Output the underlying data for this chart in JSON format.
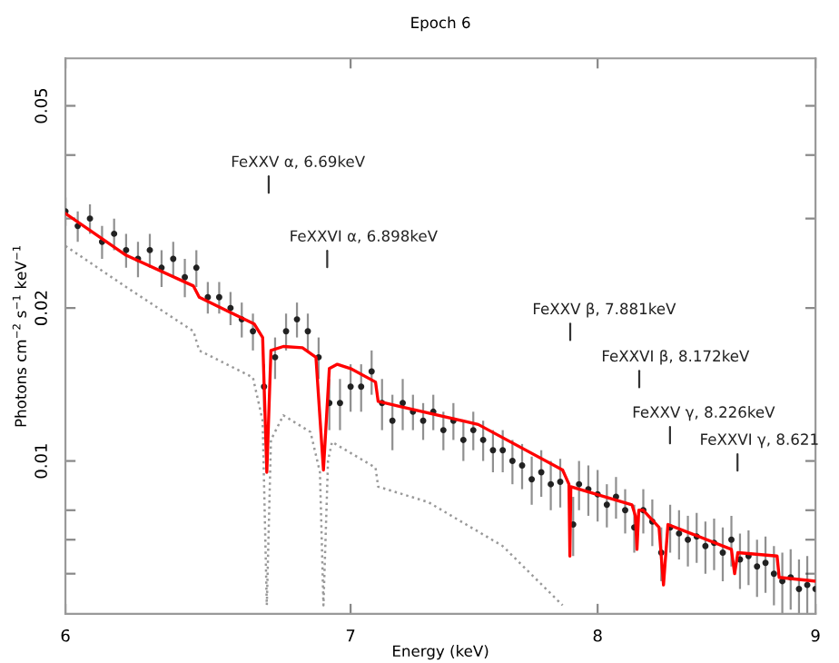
{
  "chart_data": {
    "type": "scatter",
    "title": "Epoch 6",
    "xlabel": "Energy (keV)",
    "ylabel": "Photons cm$^{−2}$ s$^{−1}$ keV$^{−1}$",
    "log": "xy",
    "grid": false,
    "legend": false,
    "xlim": [
      6,
      9
    ],
    "xticks": [
      6,
      7,
      8,
      9
    ],
    "ylim": [
      0.005,
      0.062
    ],
    "yticks": [
      {
        "value": 0.006,
        "label": null
      },
      {
        "value": 0.007,
        "label": null
      },
      {
        "value": 0.008,
        "label": null
      },
      0.01,
      0.02,
      {
        "value": 0.03,
        "label": null
      },
      {
        "value": 0.04,
        "label": null
      },
      0.05
    ],
    "annotations": [
      "FeXXV α, 6.69keV",
      "FeXXVI α, 6.898keV",
      "FeXXV β, 7.881keV",
      "FeXXVI β, 8.172keV",
      "FeXXV γ, 8.226keV",
      "FeXXVI γ, 8.621"
    ],
    "series": [
      {
        "color": "#222222",
        "marker": "circle",
        "x": [
          6.0,
          6.04,
          6.08,
          6.12,
          6.16,
          6.2,
          6.24,
          6.28,
          6.32,
          6.36,
          6.4,
          6.44,
          6.48,
          6.52,
          6.56,
          6.6,
          6.64,
          6.68,
          6.72,
          6.76,
          6.8,
          6.84,
          6.88,
          6.92,
          6.96,
          7.0,
          7.04,
          7.08,
          7.12,
          7.16,
          7.2,
          7.24,
          7.28,
          7.32,
          7.36,
          7.4,
          7.44,
          7.48,
          7.52,
          7.56,
          7.6,
          7.64,
          7.68,
          7.72,
          7.76,
          7.8,
          7.84,
          7.895,
          7.92,
          7.96,
          8.0,
          8.04,
          8.08,
          8.12,
          8.16,
          8.2,
          8.24,
          8.28,
          8.32,
          8.36,
          8.4,
          8.44,
          8.48,
          8.52,
          8.56,
          8.6,
          8.64,
          8.68,
          8.72,
          8.76,
          8.8,
          8.84,
          8.88,
          8.92,
          8.96,
          9.0
        ],
        "values": [
          0.031,
          0.029,
          0.03,
          0.027,
          0.028,
          0.026,
          0.025,
          0.026,
          0.024,
          0.025,
          0.023,
          0.024,
          0.021,
          0.021,
          0.02,
          0.019,
          0.018,
          0.014,
          0.016,
          0.018,
          0.019,
          0.018,
          0.016,
          0.013,
          0.013,
          0.014,
          0.014,
          0.015,
          0.013,
          0.012,
          0.013,
          0.0125,
          0.012,
          0.0125,
          0.0115,
          0.012,
          0.011,
          0.0115,
          0.011,
          0.0105,
          0.0105,
          0.01,
          0.0098,
          0.0092,
          0.0095,
          0.009,
          0.0091,
          0.0075,
          0.009,
          0.0088,
          0.0086,
          0.0082,
          0.0085,
          0.008,
          0.0074,
          0.008,
          0.0076,
          0.0066,
          0.0074,
          0.0072,
          0.007,
          0.0071,
          0.0068,
          0.0069,
          0.0066,
          0.007,
          0.0064,
          0.0065,
          0.0062,
          0.0063,
          0.006,
          0.0058,
          0.0059,
          0.0056,
          0.0057,
          0.0056
        ],
        "errors": [
          0.002,
          0.002,
          0.002,
          0.002,
          0.002,
          0.002,
          0.002,
          0.002,
          0.002,
          0.002,
          0.002,
          0.002,
          0.0015,
          0.0015,
          0.0015,
          0.0015,
          0.0015,
          0.0015,
          0.0015,
          0.0015,
          0.0015,
          0.0015,
          0.0015,
          0.0015,
          0.0015,
          0.0015,
          0.0015,
          0.0015,
          0.0015,
          0.0015,
          0.0015,
          0.001,
          0.001,
          0.001,
          0.001,
          0.001,
          0.001,
          0.001,
          0.001,
          0.001,
          0.001,
          0.001,
          0.001,
          0.001,
          0.001,
          0.001,
          0.001,
          0.001,
          0.001,
          0.001,
          0.001,
          0.0008,
          0.0008,
          0.0008,
          0.0008,
          0.0008,
          0.0008,
          0.0008,
          0.0008,
          0.0008,
          0.0008,
          0.0008,
          0.0008,
          0.0008,
          0.0008,
          0.0008,
          0.0008,
          0.0008,
          0.0008,
          0.0008,
          0.0008,
          0.0008,
          0.0008,
          0.0008,
          0.0008,
          0.0008
        ]
      },
      {
        "type": "line",
        "color": "#ff0000",
        "line_style": "solid",
        "x": [
          6.0,
          6.2,
          6.43,
          6.45,
          6.645,
          6.675,
          6.69,
          6.705,
          6.75,
          6.82,
          6.87,
          6.898,
          6.92,
          6.95,
          7.0,
          7.095,
          7.105,
          7.19,
          7.5,
          7.85,
          7.877,
          7.881,
          7.885,
          8.15,
          8.165,
          8.172,
          8.18,
          8.2,
          8.27,
          8.29,
          8.31,
          8.6,
          8.615,
          8.63,
          8.815,
          8.825,
          9.0
        ],
        "values": [
          0.0307,
          0.0254,
          0.0221,
          0.021,
          0.0186,
          0.0175,
          0.0095,
          0.0165,
          0.0168,
          0.0167,
          0.016,
          0.0096,
          0.0152,
          0.0155,
          0.0152,
          0.0143,
          0.0131,
          0.0128,
          0.0118,
          0.0096,
          0.009,
          0.0065,
          0.0089,
          0.0082,
          0.0078,
          0.0067,
          0.008,
          0.008,
          0.0074,
          0.0057,
          0.0075,
          0.0067,
          0.006,
          0.0066,
          0.0065,
          0.0059,
          0.0058
        ]
      },
      {
        "type": "line",
        "color": "#999999",
        "line_style": "dotted",
        "x": [
          6.0,
          6.2,
          6.43,
          6.45,
          6.64,
          6.675,
          6.69,
          6.705,
          6.75,
          6.85,
          6.885,
          6.898,
          6.915,
          6.93,
          7.095,
          7.105,
          7.3,
          7.6,
          7.85
        ],
        "values": [
          0.0265,
          0.022,
          0.018,
          0.0165,
          0.0146,
          0.012,
          0.0052,
          0.011,
          0.0123,
          0.0114,
          0.0095,
          0.0052,
          0.01,
          0.0109,
          0.0097,
          0.0089,
          0.0083,
          0.0068,
          0.0052
        ]
      }
    ]
  }
}
